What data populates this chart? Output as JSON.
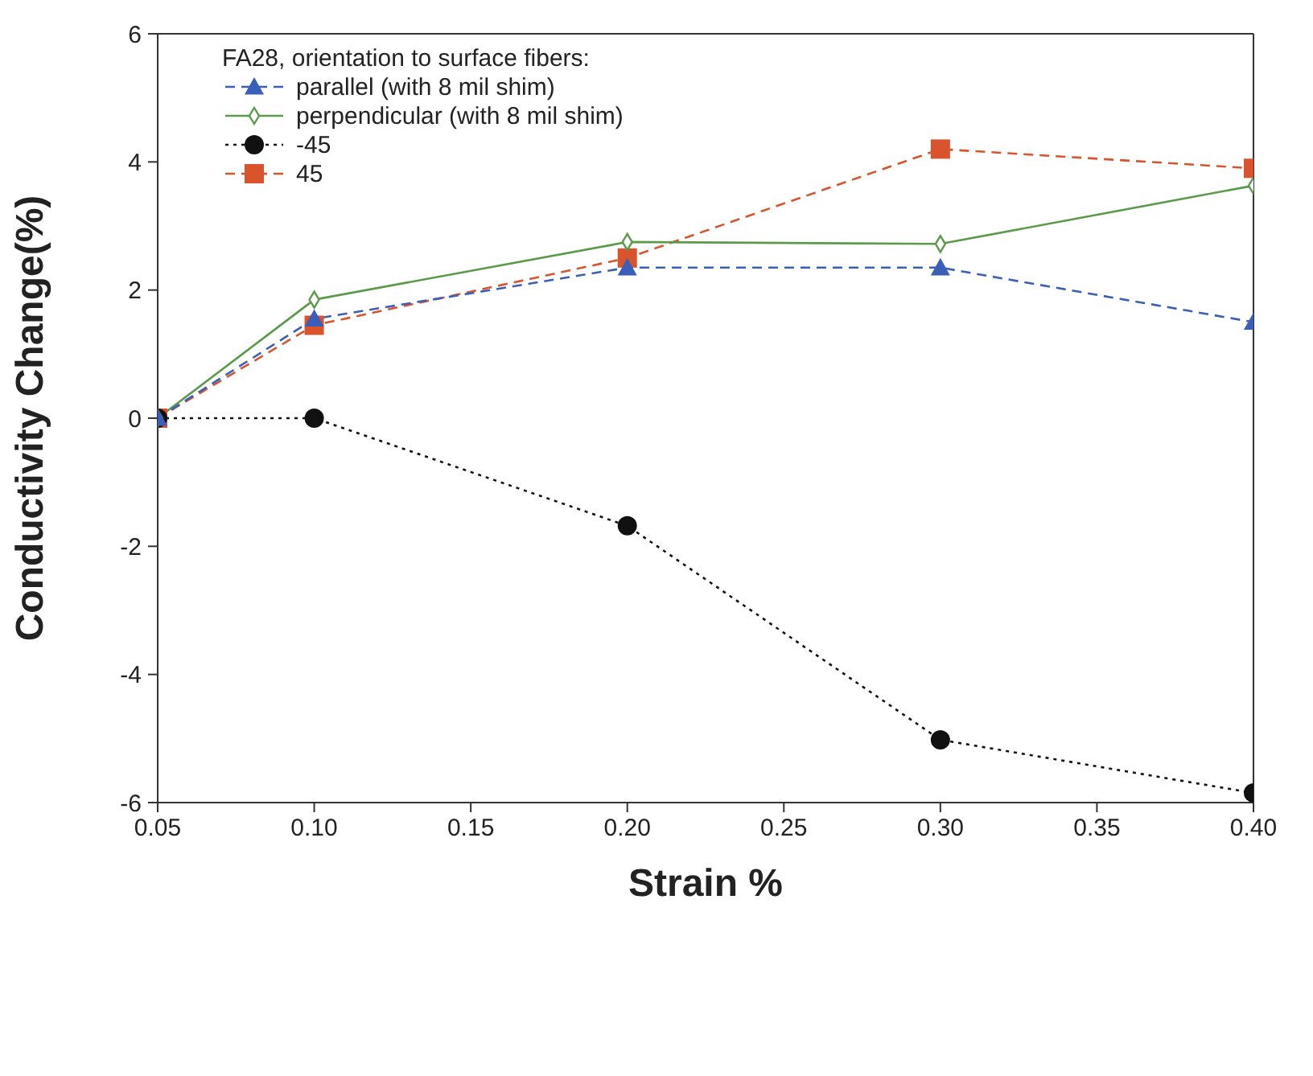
{
  "chart_data": {
    "type": "line",
    "xlabel": "Strain %",
    "ylabel": "Conductivity Change(%)",
    "legend_title": "FA28, orientation to surface fibers:",
    "x": [
      0.05,
      0.1,
      0.2,
      0.3,
      0.4
    ],
    "xlim": [
      0.05,
      0.4
    ],
    "xticks": [
      {
        "value": 0.05,
        "label": "0.05"
      },
      {
        "value": 0.1,
        "label": "0.10"
      },
      {
        "value": 0.15,
        "label": "0.15"
      },
      {
        "value": 0.2,
        "label": "0.20"
      },
      {
        "value": 0.25,
        "label": "0.25"
      },
      {
        "value": 0.3,
        "label": "0.30"
      },
      {
        "value": 0.35,
        "label": "0.35"
      },
      {
        "value": 0.4,
        "label": "0.40"
      }
    ],
    "ylim": [
      -6,
      6
    ],
    "yticks": [
      -6,
      -4,
      -2,
      0,
      2,
      4,
      6
    ],
    "grid": false,
    "legend": "top left",
    "series": [
      {
        "name": "parallel (with 8 mil shim)",
        "color": "#3a5fb8",
        "marker": "triangle",
        "line_style": "dashed",
        "values": [
          0,
          1.55,
          2.35,
          2.35,
          1.5
        ]
      },
      {
        "name": "perpendicular  (with 8 mil shim)",
        "color": "#5a9a4a",
        "marker": "diamond",
        "line_style": "solid",
        "values": [
          0,
          1.85,
          2.75,
          2.72,
          3.63
        ]
      },
      {
        "name": "-45",
        "color": "#111111",
        "marker": "circle",
        "line_style": "dotted",
        "values": [
          0,
          0,
          -1.68,
          -5.02,
          -5.85
        ]
      },
      {
        "name": "45",
        "color": "#d9532c",
        "marker": "square",
        "line_style": "dashed",
        "values": [
          0,
          1.45,
          2.5,
          4.2,
          3.9
        ]
      }
    ]
  }
}
